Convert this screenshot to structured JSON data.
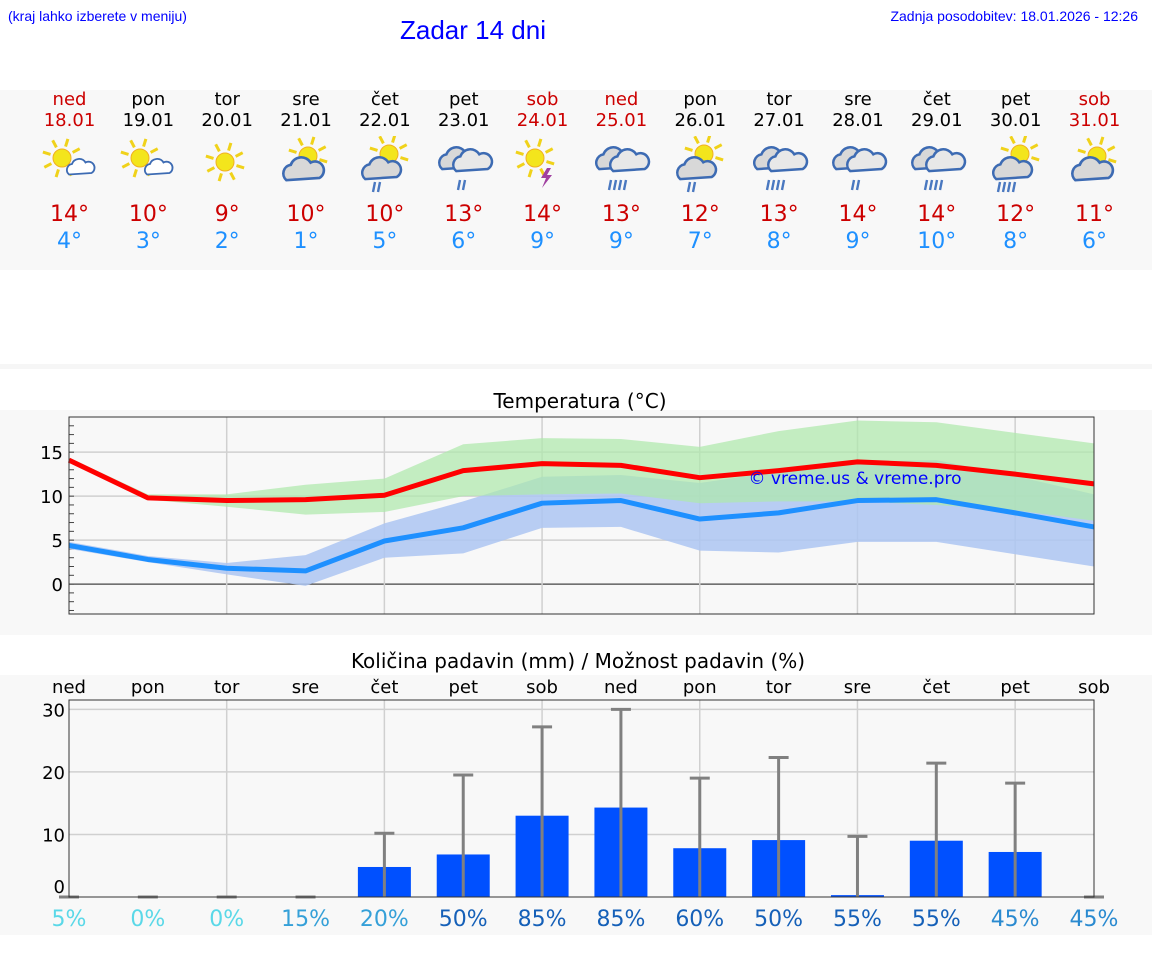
{
  "header": {
    "menu_note": "(kraj lahko izberete v meniju)",
    "title": "Zadar 14 dni",
    "updated": "Zadnja posodobitev: 18.01.2026 - 12:26"
  },
  "days": [
    {
      "name": "ned",
      "date": "18.01",
      "weekend": true,
      "icon": "sun-small-cloud",
      "max": "14°",
      "min": "4°"
    },
    {
      "name": "pon",
      "date": "19.01",
      "weekend": false,
      "icon": "sun-small-cloud",
      "max": "10°",
      "min": "3°"
    },
    {
      "name": "tor",
      "date": "20.01",
      "weekend": false,
      "icon": "sun",
      "max": "9°",
      "min": "2°"
    },
    {
      "name": "sre",
      "date": "21.01",
      "weekend": false,
      "icon": "sun-cloud",
      "max": "10°",
      "min": "1°"
    },
    {
      "name": "čet",
      "date": "22.01",
      "weekend": false,
      "icon": "sun-cloud-light-rain",
      "max": "10°",
      "min": "5°"
    },
    {
      "name": "pet",
      "date": "23.01",
      "weekend": false,
      "icon": "cloud-light-rain",
      "max": "13°",
      "min": "6°"
    },
    {
      "name": "sob",
      "date": "24.01",
      "weekend": true,
      "icon": "sun-thunder",
      "max": "14°",
      "min": "9°"
    },
    {
      "name": "ned",
      "date": "25.01",
      "weekend": true,
      "icon": "cloud-rain",
      "max": "13°",
      "min": "9°"
    },
    {
      "name": "pon",
      "date": "26.01",
      "weekend": false,
      "icon": "sun-cloud-light-rain",
      "max": "12°",
      "min": "7°"
    },
    {
      "name": "tor",
      "date": "27.01",
      "weekend": false,
      "icon": "cloud-rain",
      "max": "13°",
      "min": "8°"
    },
    {
      "name": "sre",
      "date": "28.01",
      "weekend": false,
      "icon": "cloud-light-rain",
      "max": "14°",
      "min": "9°"
    },
    {
      "name": "čet",
      "date": "29.01",
      "weekend": false,
      "icon": "cloud-rain",
      "max": "14°",
      "min": "10°"
    },
    {
      "name": "pet",
      "date": "30.01",
      "weekend": false,
      "icon": "sun-cloud-heavy-rain",
      "max": "12°",
      "min": "8°"
    },
    {
      "name": "sob",
      "date": "31.01",
      "weekend": true,
      "icon": "sun-cloud",
      "max": "11°",
      "min": "6°"
    }
  ],
  "colors": {
    "max": "#ff0000",
    "min": "#1e90ff",
    "max_band": "#aee8ab",
    "min_band": "#adc6f2",
    "bar": "#0050ff",
    "error": "#808080"
  },
  "chart_data": [
    {
      "type": "line",
      "title": "Temperatura (°C)",
      "ylim": [
        -3.4,
        19
      ],
      "yticks": [
        0,
        5,
        10,
        15
      ],
      "watermark": "© vreme.us & vreme.pro",
      "x": [
        0,
        1,
        2,
        3,
        4,
        5,
        6,
        7,
        8,
        9,
        10,
        11,
        12,
        13
      ],
      "series": [
        {
          "name": "max",
          "values": [
            14.1,
            9.8,
            9.5,
            9.6,
            10.1,
            12.9,
            13.7,
            13.5,
            12.1,
            12.9,
            13.9,
            13.5,
            12.5,
            11.4
          ],
          "band_low": [
            13.8,
            9.6,
            8.8,
            7.9,
            8.2,
            10,
            10.2,
            10.3,
            9.2,
            9.4,
            9.4,
            9,
            8.4,
            7.2
          ],
          "band_high": [
            14.4,
            10.2,
            10.2,
            11.3,
            12,
            15.9,
            16.6,
            16.5,
            15.6,
            17.4,
            18.6,
            18.4,
            17.2,
            16
          ]
        },
        {
          "name": "min",
          "values": [
            4.4,
            2.8,
            1.8,
            1.5,
            4.9,
            6.4,
            9.2,
            9.5,
            7.4,
            8.1,
            9.5,
            9.6,
            8.1,
            6.5
          ],
          "band_low": [
            4,
            2.5,
            1.1,
            -0.2,
            3,
            3.5,
            6.4,
            6.5,
            3.8,
            3.6,
            4.8,
            4.8,
            3.4,
            2
          ],
          "band_high": [
            4.8,
            3.2,
            2.4,
            3.3,
            6.9,
            9.4,
            12.2,
            12.4,
            11.5,
            12.8,
            13.9,
            14.1,
            12.3,
            10.2
          ]
        }
      ]
    },
    {
      "type": "bar",
      "title": "Količina padavin (mm) / Možnost padavin (%)",
      "ylim": [
        0,
        31.5
      ],
      "yticks": [
        0,
        10,
        20,
        30
      ],
      "categories": [
        "ned",
        "pon",
        "tor",
        "sre",
        "čet",
        "pet",
        "sob",
        "ned",
        "pon",
        "tor",
        "sre",
        "čet",
        "pet",
        "sob"
      ],
      "values": [
        0,
        0,
        0,
        0,
        4.8,
        6.8,
        13,
        14.3,
        7.8,
        9.1,
        0.3,
        9,
        7.2,
        0
      ],
      "error_max": [
        0,
        0,
        0,
        0,
        10.2,
        19.5,
        27.2,
        30,
        19,
        22.3,
        9.7,
        21.4,
        18.2,
        0
      ],
      "probability": [
        "5%",
        "0%",
        "0%",
        "15%",
        "20%",
        "50%",
        "85%",
        "85%",
        "60%",
        "50%",
        "55%",
        "55%",
        "45%",
        "45%"
      ]
    }
  ]
}
